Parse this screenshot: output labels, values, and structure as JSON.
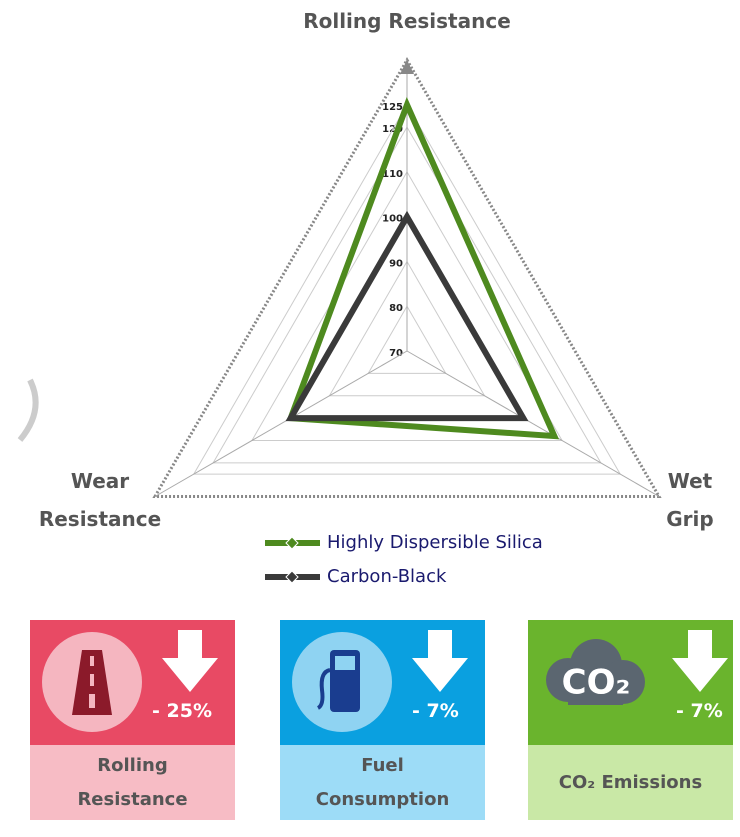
{
  "chart_data": {
    "type": "radar",
    "axes": [
      "Rolling Resistance",
      "Wet Grip",
      "Wear Resistance"
    ],
    "rlim": [
      70,
      135
    ],
    "rticks": [
      70,
      80,
      90,
      100,
      110,
      120,
      125
    ],
    "series": [
      {
        "name": "Highly Dispersible Silica",
        "color": "#4e8a1f",
        "values": [
          125,
          108,
          100
        ]
      },
      {
        "name": "Carbon-Black",
        "color": "#3a3a3a",
        "values": [
          100,
          100,
          100
        ]
      }
    ]
  },
  "cards": [
    {
      "change": "- 25%",
      "label": "Rolling Resistance"
    },
    {
      "change": "- 7%",
      "label": "Fuel Consumption"
    },
    {
      "change": "- 7%",
      "label": "CO₂ Emissions"
    }
  ],
  "icon_text": "CO₂"
}
